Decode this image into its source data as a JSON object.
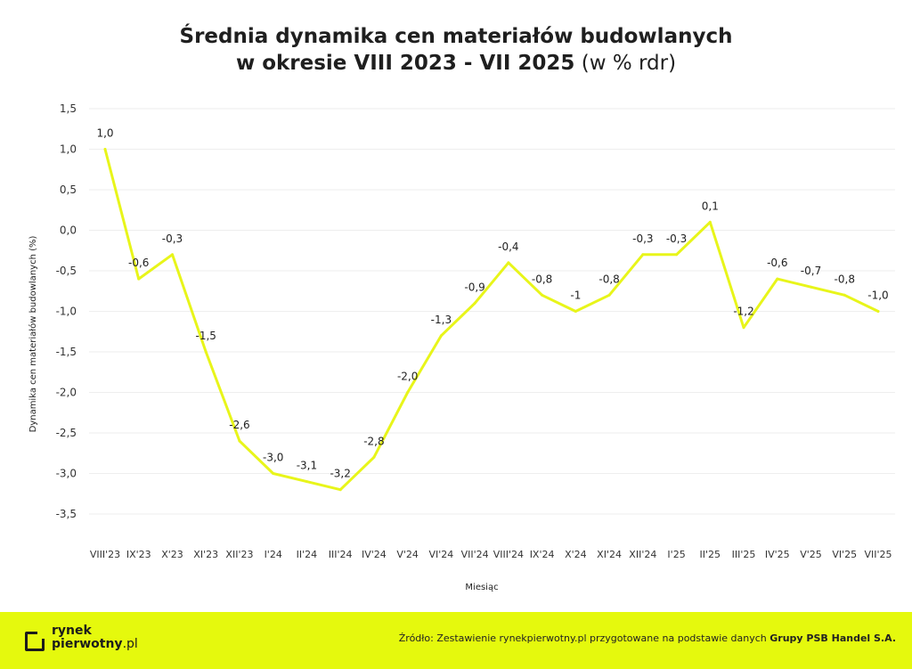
{
  "title": {
    "line1": "Średnia dynamika cen materiałów budowlanych",
    "line2_bold": "w okresie VIII 2023 - VII 2025",
    "line2_light": "(w % rdr)"
  },
  "chart_data": {
    "type": "line",
    "xlabel": "Miesiąc",
    "ylabel": "Dynamika cen materiałów budowlanych (%)",
    "ylim": [
      -3.5,
      1.5
    ],
    "yticks": [
      1.5,
      1.0,
      0.5,
      0.0,
      -0.5,
      -1.0,
      -1.5,
      -2.0,
      -2.5,
      -3.0,
      -3.5
    ],
    "ytick_labels": [
      "1,5",
      "1,0",
      "0,5",
      "0,0",
      "-0,5",
      "-1,0",
      "-1,5",
      "-2,0",
      "-2,5",
      "-3,0",
      "-3,5"
    ],
    "grid": true,
    "line_color": "#e8f51a",
    "categories": [
      "VIII'23",
      "IX'23",
      "X'23",
      "XI'23",
      "XII'23",
      "I'24",
      "II'24",
      "III'24",
      "IV'24",
      "V'24",
      "VI'24",
      "VII'24",
      "VIII'24",
      "IX'24",
      "X'24",
      "XI'24",
      "XII'24",
      "I'25",
      "II'25",
      "III'25",
      "IV'25",
      "V'25",
      "VI'25",
      "VII'25"
    ],
    "series": [
      {
        "values": [
          1.0,
          -0.6,
          -0.3,
          -1.5,
          -2.6,
          -3.0,
          -3.1,
          -3.2,
          -2.8,
          -2.0,
          -1.3,
          -0.9,
          -0.4,
          -0.8,
          -1.0,
          -0.8,
          -0.3,
          -0.3,
          0.1,
          -1.2,
          -0.6,
          -0.7,
          -0.8,
          -1.0
        ],
        "labels": [
          "1,0",
          "-0,6",
          "-0,3",
          "-1,5",
          "-2,6",
          "-3,0",
          "-3,1",
          "-3,2",
          "-2,8",
          "-2,0",
          "-1,3",
          "-0,9",
          "-0,4",
          "-0,8",
          "-1",
          "-0,8",
          "-0,3",
          "-0,3",
          "0,1",
          "-1,2",
          "-0,6",
          "-0,7",
          "-0,8",
          "-1,0"
        ]
      }
    ]
  },
  "footer": {
    "logo_line1": "rynek",
    "logo_line2": "pierwotny",
    "logo_domain": ".pl",
    "source_prefix": "Źródło: Zestawienie rynekpierwotny.pl przygotowane na podstawie danych",
    "source_strong": "Grupy PSB Handel S.A.",
    "background": "#e5f90d"
  }
}
